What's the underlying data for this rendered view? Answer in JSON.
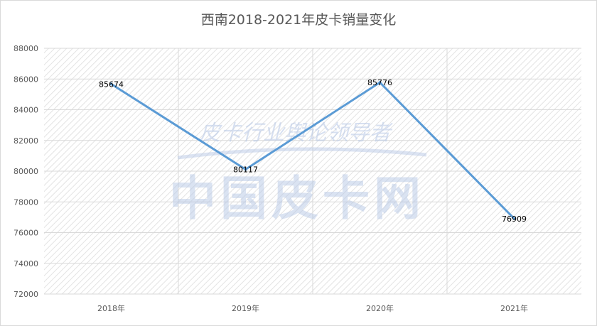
{
  "chart_data": {
    "type": "line",
    "title": "西南2018-2021年皮卡销量变化",
    "categories": [
      "2018年",
      "2019年",
      "2020年",
      "2021年"
    ],
    "series": [
      {
        "values": [
          85674,
          80117,
          85776,
          76909
        ]
      }
    ],
    "data_labels": [
      "85674",
      "80117",
      "85776",
      "76909"
    ],
    "ylim": [
      72000,
      88000
    ],
    "yticks": [
      72000,
      74000,
      76000,
      78000,
      80000,
      82000,
      84000,
      86000,
      88000
    ],
    "grid": true,
    "line_color": "#5b9bd5"
  },
  "watermark": {
    "script": "皮卡行业舆论领导者",
    "logo": "中国皮卡网"
  }
}
